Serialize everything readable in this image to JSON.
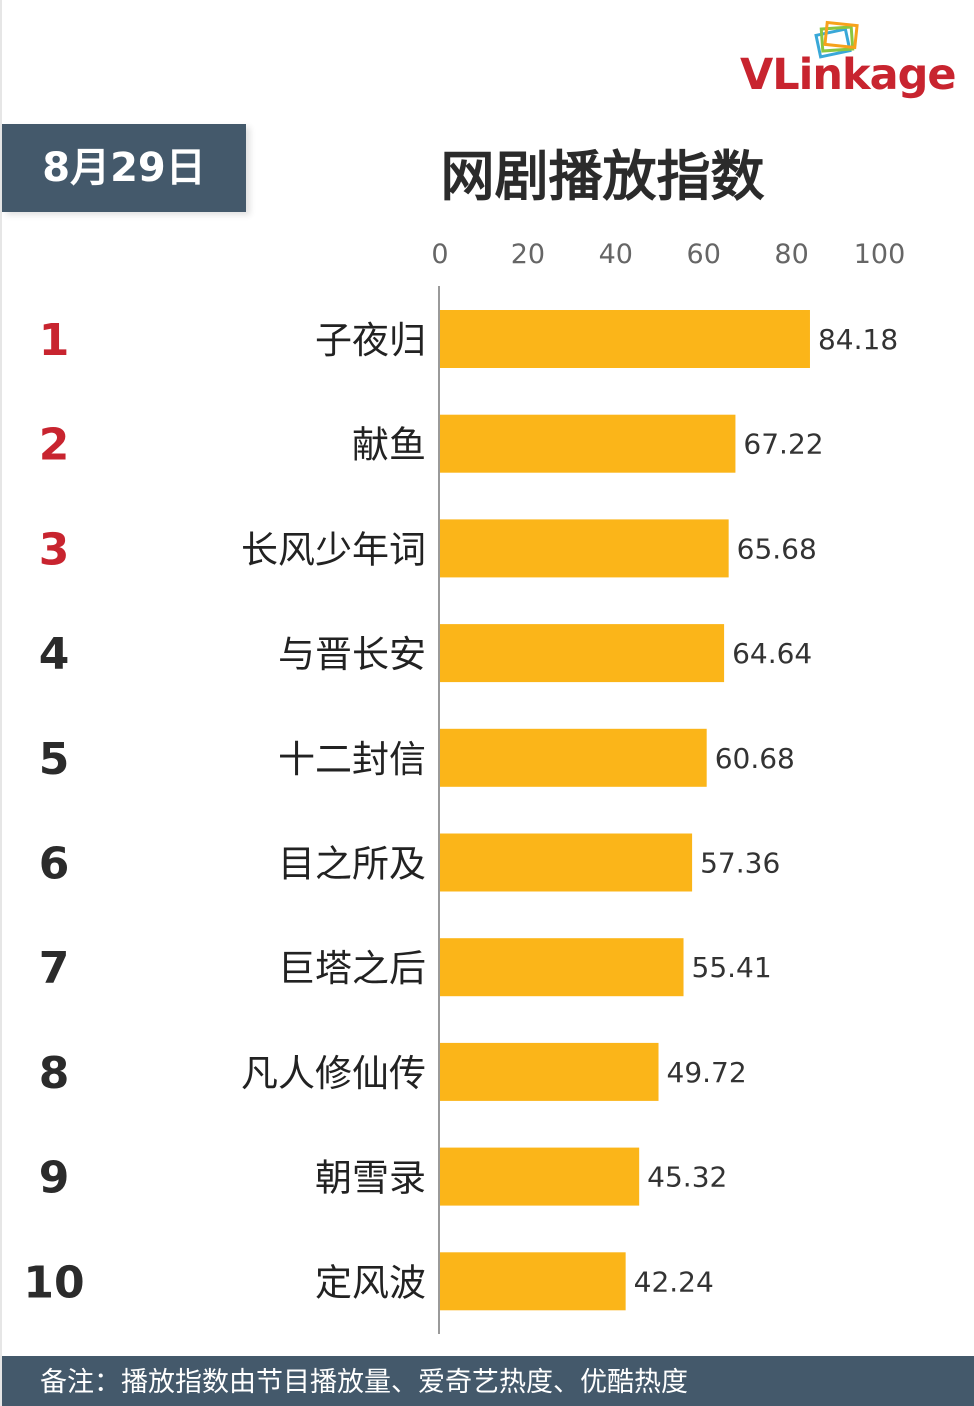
{
  "brand": {
    "logo_text": "VLinkage",
    "colors": {
      "primary": "#c8242f",
      "header_bg": "#44596b",
      "bar": "#fbb519",
      "rank_highlight": "#c8242f",
      "rank_default": "#2b2b2b"
    }
  },
  "header": {
    "date": "8月29日",
    "title": "网剧播放指数"
  },
  "chart_data": {
    "type": "bar",
    "orientation": "horizontal",
    "title": "网剧播放指数",
    "xlabel": "",
    "ylabel": "",
    "xlim": [
      0,
      100
    ],
    "ticks": [
      0,
      20,
      40,
      60,
      80,
      100
    ],
    "tick_labels": [
      "0",
      "20",
      "40",
      "60",
      "80",
      "100"
    ],
    "grid": false,
    "ranks": [
      "1",
      "2",
      "3",
      "4",
      "5",
      "6",
      "7",
      "8",
      "9",
      "10"
    ],
    "categories": [
      "子夜归",
      "献鱼",
      "长风少年词",
      "与晋长安",
      "十二封信",
      "目之所及",
      "巨塔之后",
      "凡人修仙传",
      "朝雪录",
      "定风波"
    ],
    "values": [
      84.18,
      67.22,
      65.68,
      64.64,
      60.68,
      57.36,
      55.41,
      49.72,
      45.32,
      42.24
    ],
    "value_labels": [
      "84.18",
      "67.22",
      "65.68",
      "64.64",
      "60.68",
      "57.36",
      "55.41",
      "49.72",
      "45.32",
      "42.24"
    ]
  },
  "footer": {
    "note": "备注：播放指数由节目播放量、爱奇艺热度、优酷热度"
  }
}
